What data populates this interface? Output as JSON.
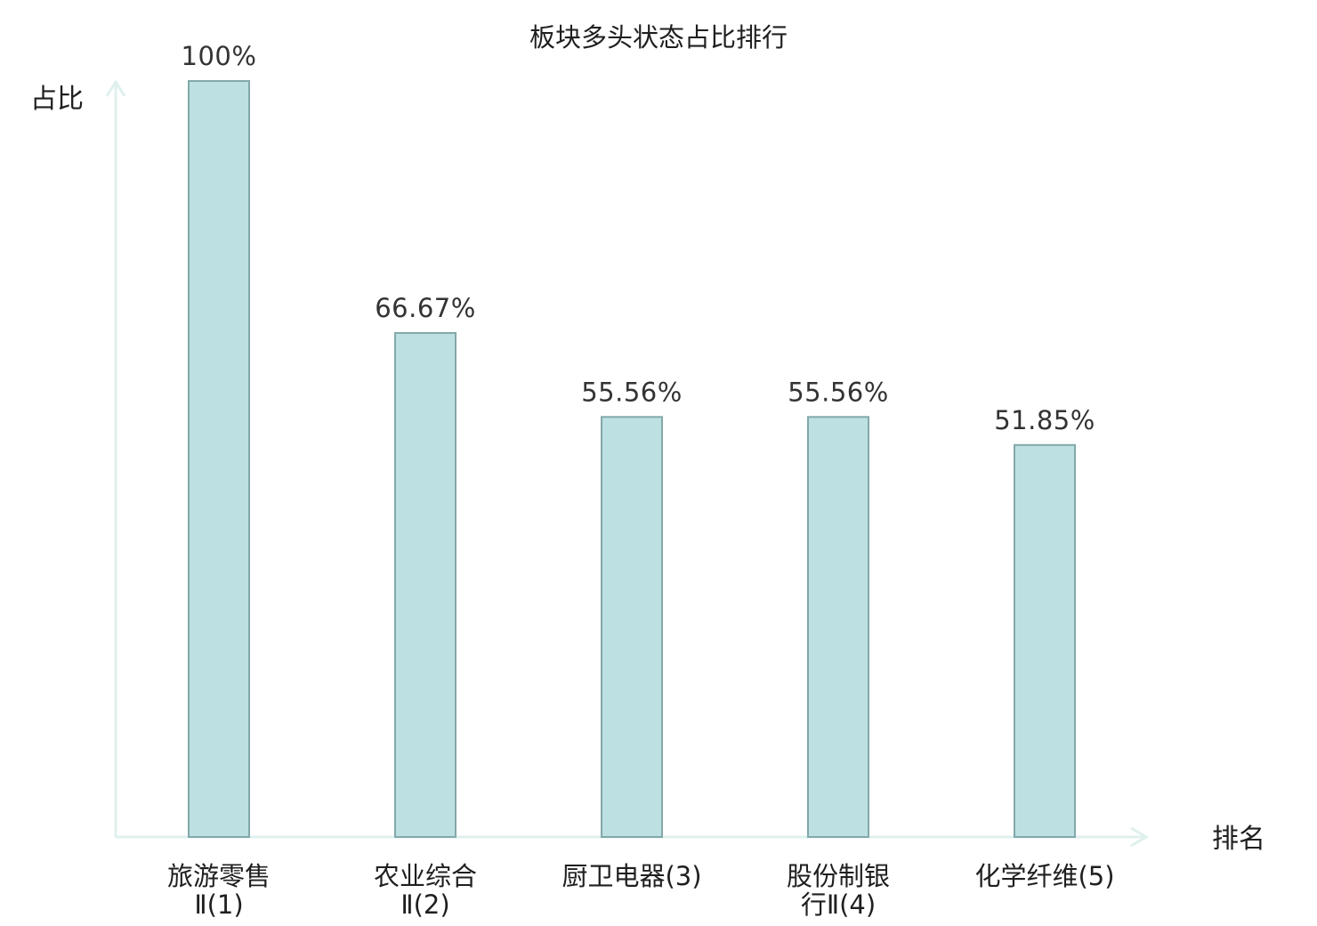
{
  "chart_data": {
    "type": "bar",
    "title": "板块多头状态占比排行",
    "ylabel": "占比",
    "xlabel": "排名",
    "categories": [
      [
        "旅游零售",
        "Ⅱ(1)"
      ],
      [
        "农业综合",
        "Ⅱ(2)"
      ],
      [
        "厨卫电器(3)"
      ],
      [
        "股份制银",
        "行Ⅱ(4)"
      ],
      [
        "化学纤维(5)"
      ]
    ],
    "values": [
      100,
      66.67,
      55.56,
      55.56,
      51.85
    ],
    "value_labels": [
      "100%",
      "66.67%",
      "55.56%",
      "55.56%",
      "51.85%"
    ],
    "highlight_index": 2,
    "ylim": [
      0,
      100
    ],
    "grid": false,
    "legend": "none",
    "colors": {
      "bar_fill": "#bde0e2",
      "bar_stroke": "#83a8aa",
      "axis": "#dff0ee",
      "highlight_text": "#e60012",
      "text": "#1f1f1f",
      "value_text": "#333333"
    }
  }
}
